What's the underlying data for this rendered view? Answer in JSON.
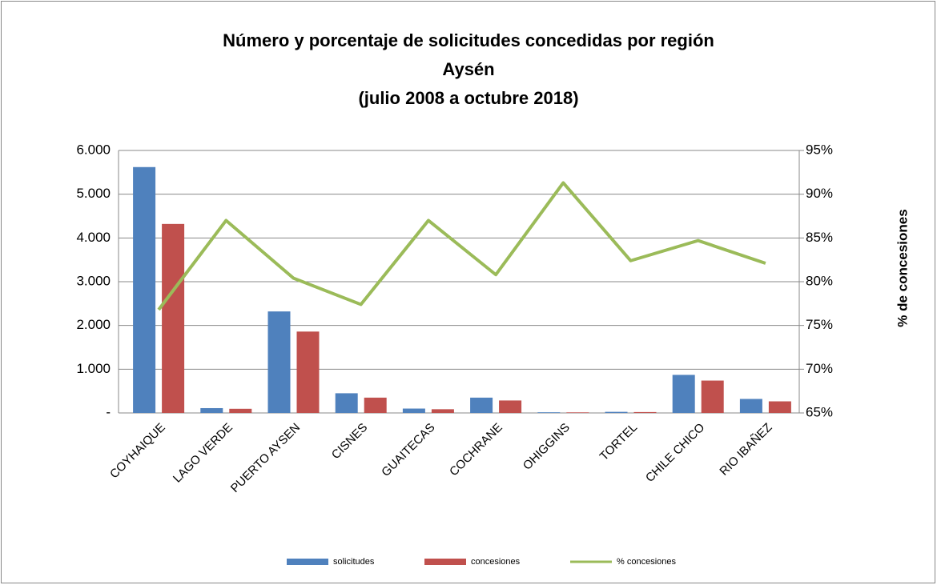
{
  "chart_data": {
    "type": "bar_line",
    "title": [
      "Número y porcentaje de solicitudes concedidas por región",
      "Aysén",
      "(julio 2008 a octubre 2018)"
    ],
    "y2_label": "% de concesiones",
    "categories": [
      "COYHAIQUE",
      "LAGO VERDE",
      "PUERTO AYSEN",
      "CISNES",
      "GUAITECAS",
      "COCHRANE",
      "OHIGGINS",
      "TORTEL",
      "CHILE CHICO",
      "RIO IBAÑEZ"
    ],
    "series": [
      {
        "name": "solicitudes",
        "type": "bar",
        "color": "#4f81bd",
        "values": [
          5620,
          110,
          2320,
          450,
          100,
          350,
          15,
          25,
          870,
          320
        ]
      },
      {
        "name": "concesiones",
        "type": "bar",
        "color": "#c0504d",
        "values": [
          4320,
          95,
          1860,
          350,
          85,
          285,
          13,
          20,
          740,
          265
        ]
      },
      {
        "name": "% concesiones",
        "type": "line",
        "axis": "y2",
        "color": "#9bbb59",
        "values": [
          76.8,
          87.0,
          80.4,
          77.4,
          87.0,
          80.8,
          91.3,
          82.4,
          84.7,
          82.1
        ]
      }
    ],
    "ylim": [
      0,
      6000
    ],
    "yticks": [
      {
        "value": 0,
        "label": "-"
      },
      {
        "value": 1000,
        "label": "1.000"
      },
      {
        "value": 2000,
        "label": "2.000"
      },
      {
        "value": 3000,
        "label": "3.000"
      },
      {
        "value": 4000,
        "label": "4.000"
      },
      {
        "value": 5000,
        "label": "5.000"
      },
      {
        "value": 6000,
        "label": "6.000"
      }
    ],
    "y2lim": [
      65,
      95
    ],
    "y2ticks": [
      {
        "value": 65,
        "label": "65%"
      },
      {
        "value": 70,
        "label": "70%"
      },
      {
        "value": 75,
        "label": "75%"
      },
      {
        "value": 80,
        "label": "80%"
      },
      {
        "value": 85,
        "label": "85%"
      },
      {
        "value": 90,
        "label": "90%"
      },
      {
        "value": 95,
        "label": "95%"
      }
    ],
    "grid": true,
    "legend": "bottom"
  }
}
